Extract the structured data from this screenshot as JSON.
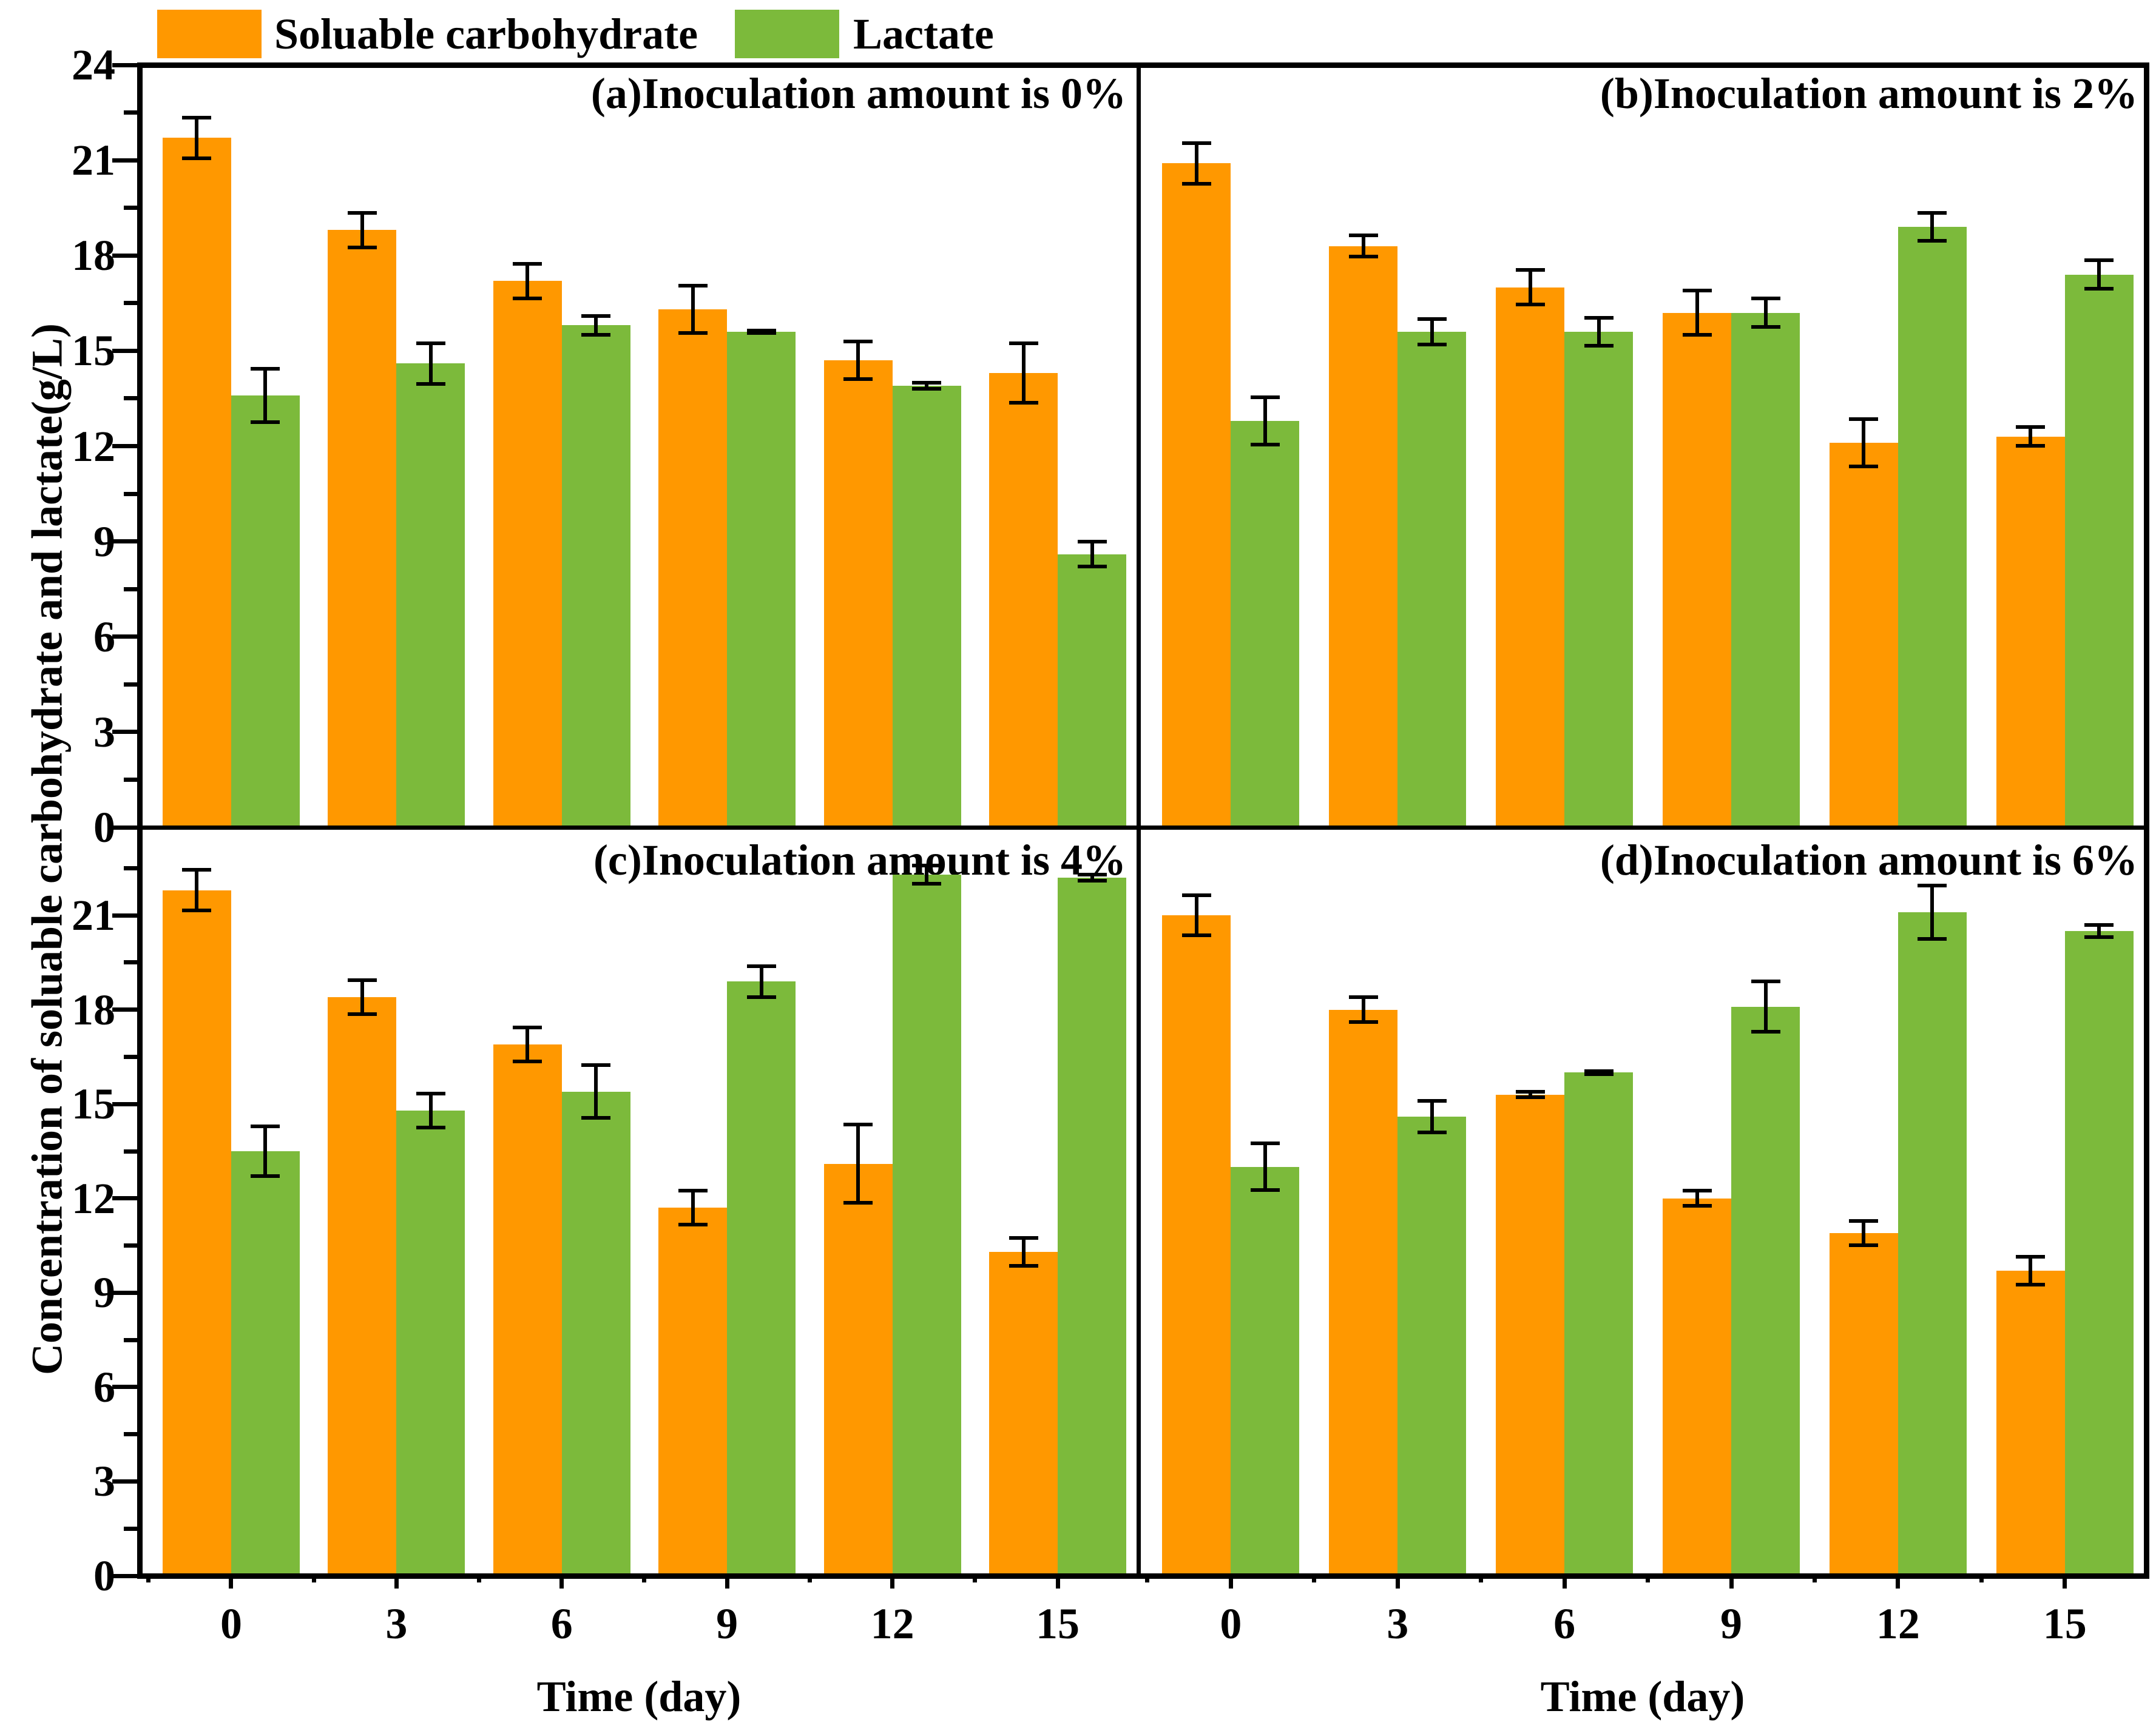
{
  "figure": {
    "y_axis_label": "Concentration of soluable carbohydrate and lactate(g/L)",
    "x_axis_label": "Time (day)"
  },
  "legend": {
    "items": [
      {
        "label": "Soluable carbohydrate",
        "color": "#FF9800"
      },
      {
        "label": "Lactate",
        "color": "#7CBA3B"
      }
    ]
  },
  "chart_data": {
    "type": "bar",
    "categories": [
      "0",
      "3",
      "6",
      "9",
      "12",
      "15"
    ],
    "xlabel": "Time (day)",
    "ylabel": "Concentration of soluable carbohydrate and lactate(g/L)",
    "grid": false,
    "legend_position": "top-left",
    "error_bars": true,
    "y_ticks_major": [
      0,
      3,
      6,
      9,
      12,
      15,
      18,
      21,
      24
    ],
    "y_minor_step": 1.5,
    "colors": {
      "Soluable carbohydrate": "#FF9800",
      "Lactate": "#7CBA3B"
    },
    "panels": [
      {
        "id": "a",
        "title": "(a)Inoculation amount is 0%",
        "ylim": [
          0,
          24
        ],
        "series": [
          {
            "name": "Soluable carbohydrate",
            "values": [
              21.7,
              18.8,
              17.2,
              16.3,
              14.7,
              14.3
            ],
            "errors": [
              0.7,
              0.6,
              0.6,
              0.8,
              0.65,
              1.0
            ]
          },
          {
            "name": "Lactate",
            "values": [
              13.6,
              14.6,
              15.8,
              15.6,
              13.9,
              8.6
            ],
            "errors": [
              0.9,
              0.7,
              0.35,
              0.1,
              0.15,
              0.45
            ]
          }
        ]
      },
      {
        "id": "b",
        "title": "(b)Inoculation amount is 2%",
        "ylim": [
          0,
          24
        ],
        "series": [
          {
            "name": "Soluable carbohydrate",
            "values": [
              20.9,
              18.3,
              17.0,
              16.2,
              12.1,
              12.3
            ],
            "errors": [
              0.7,
              0.4,
              0.6,
              0.75,
              0.8,
              0.35
            ]
          },
          {
            "name": "Lactate",
            "values": [
              12.8,
              15.6,
              15.6,
              16.2,
              18.9,
              17.4
            ],
            "errors": [
              0.8,
              0.45,
              0.5,
              0.5,
              0.5,
              0.5
            ]
          }
        ]
      },
      {
        "id": "c",
        "title": "(c)Inoculation amount is 4%",
        "ylim": [
          0,
          23.8
        ],
        "series": [
          {
            "name": "Soluable carbohydrate",
            "values": [
              21.8,
              18.4,
              16.9,
              11.7,
              13.1,
              10.3
            ],
            "errors": [
              0.7,
              0.6,
              0.6,
              0.6,
              1.3,
              0.5
            ]
          },
          {
            "name": "Lactate",
            "values": [
              13.5,
              14.8,
              15.4,
              18.9,
              22.3,
              22.2
            ],
            "errors": [
              0.85,
              0.6,
              0.9,
              0.55,
              0.35,
              0.15
            ]
          }
        ]
      },
      {
        "id": "d",
        "title": "(d)Inoculation amount is 6%",
        "ylim": [
          0,
          23.8
        ],
        "series": [
          {
            "name": "Soluable carbohydrate",
            "values": [
              21.0,
              18.0,
              15.3,
              12.0,
              10.9,
              9.7
            ],
            "errors": [
              0.7,
              0.45,
              0.15,
              0.3,
              0.45,
              0.5
            ]
          },
          {
            "name": "Lactate",
            "values": [
              13.0,
              14.6,
              16.0,
              18.1,
              21.1,
              20.5
            ],
            "errors": [
              0.8,
              0.55,
              0.1,
              0.85,
              0.9,
              0.25
            ]
          }
        ]
      }
    ]
  }
}
